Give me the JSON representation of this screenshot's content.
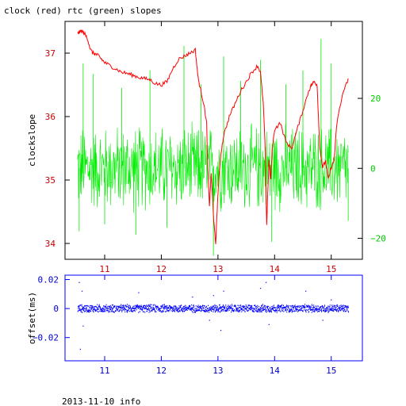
{
  "figure": {
    "title": "clock (red) rtc (green) slopes",
    "footer": "2013-11-10 info"
  },
  "colors": {
    "clock": "#ff0000",
    "rtc": "#00ee00",
    "offset": "#0000ff",
    "axis": "#000000"
  },
  "chart_data": [
    {
      "type": "line",
      "title": "clock (red) rtc (green) slopes",
      "xlim": [
        10.3,
        15.55
      ],
      "x_ticks": [
        11,
        12,
        13,
        14,
        15
      ],
      "x_tick_labels": [
        "11",
        "12",
        "13",
        "14",
        "15"
      ],
      "ylabel": "clockslope",
      "ylim": [
        33.75,
        37.5
      ],
      "y_ticks": [
        34,
        35,
        36,
        37
      ],
      "y_tick_labels": [
        "34",
        "35",
        "36",
        "37"
      ],
      "y2lim": [
        -26,
        42
      ],
      "y2_ticks": [
        -20,
        0,
        20
      ],
      "y2_tick_labels": [
        "−20",
        "0",
        "20"
      ],
      "grid": false,
      "series": [
        {
          "name": "clock",
          "axis": "left",
          "x": [
            10.52,
            10.55,
            10.6,
            10.65,
            10.7,
            10.75,
            10.8,
            10.85,
            10.9,
            10.95,
            11.0,
            11.1,
            11.2,
            11.3,
            11.4,
            11.5,
            11.6,
            11.7,
            11.8,
            11.9,
            12.0,
            12.1,
            12.2,
            12.3,
            12.4,
            12.5,
            12.6,
            12.65,
            12.7,
            12.75,
            12.8,
            12.82,
            12.85,
            12.88,
            12.9,
            12.93,
            12.96,
            13.0,
            13.05,
            13.1,
            13.2,
            13.3,
            13.4,
            13.5,
            13.6,
            13.7,
            13.75,
            13.8,
            13.83,
            13.86,
            13.9,
            13.93,
            13.96,
            14.0,
            14.1,
            14.2,
            14.3,
            14.4,
            14.5,
            14.6,
            14.65,
            14.7,
            14.75,
            14.8,
            14.85,
            14.9,
            14.95,
            15.0,
            15.05,
            15.1,
            15.2,
            15.3
          ],
          "y": [
            37.3,
            37.33,
            37.35,
            37.3,
            37.22,
            37.05,
            37.0,
            36.98,
            36.95,
            36.9,
            36.85,
            36.8,
            36.75,
            36.7,
            36.68,
            36.65,
            36.62,
            36.6,
            36.58,
            36.52,
            36.5,
            36.55,
            36.75,
            36.9,
            36.95,
            37.0,
            37.05,
            36.6,
            36.4,
            36.2,
            35.9,
            35.2,
            34.6,
            35.1,
            34.8,
            34.3,
            34.0,
            34.8,
            35.4,
            35.7,
            36.0,
            36.2,
            36.4,
            36.55,
            36.7,
            36.8,
            36.7,
            36.2,
            35.6,
            34.3,
            35.3,
            35.0,
            35.5,
            35.8,
            35.9,
            35.6,
            35.5,
            35.8,
            36.1,
            36.4,
            36.5,
            36.55,
            36.5,
            35.5,
            35.2,
            35.3,
            35.0,
            35.2,
            35.3,
            35.9,
            36.35,
            36.6
          ]
        },
        {
          "name": "rtc",
          "axis": "right",
          "center": 0,
          "band": [
            -14,
            14
          ],
          "spikes": [
            {
              "x": 10.55,
              "y": -18
            },
            {
              "x": 10.62,
              "y": 30
            },
            {
              "x": 10.8,
              "y": 27
            },
            {
              "x": 11.0,
              "y": -16
            },
            {
              "x": 11.3,
              "y": 23
            },
            {
              "x": 11.55,
              "y": -19
            },
            {
              "x": 11.8,
              "y": 28
            },
            {
              "x": 12.1,
              "y": -17
            },
            {
              "x": 12.4,
              "y": 35
            },
            {
              "x": 12.7,
              "y": 24
            },
            {
              "x": 12.92,
              "y": -25
            },
            {
              "x": 13.1,
              "y": 32
            },
            {
              "x": 13.4,
              "y": 25
            },
            {
              "x": 13.75,
              "y": 31
            },
            {
              "x": 13.95,
              "y": -21
            },
            {
              "x": 14.2,
              "y": 24
            },
            {
              "x": 14.5,
              "y": 28
            },
            {
              "x": 14.82,
              "y": 37
            },
            {
              "x": 15.0,
              "y": 30
            },
            {
              "x": 15.3,
              "y": -15
            }
          ]
        }
      ]
    },
    {
      "type": "scatter",
      "ylabel": "offset(ms)",
      "xlim": [
        10.3,
        15.55
      ],
      "x_ticks": [
        11,
        12,
        13,
        14,
        15
      ],
      "x_tick_labels": [
        "11",
        "12",
        "13",
        "14",
        "15"
      ],
      "ylim": [
        -0.036,
        0.023
      ],
      "y_ticks": [
        0.02,
        0,
        -0.02
      ],
      "y_tick_labels": [
        "0.02",
        "0",
        "−0.02"
      ],
      "grid": false,
      "series": [
        {
          "name": "offset",
          "center": 0,
          "band": [
            -0.003,
            0.003
          ],
          "outliers": [
            {
              "x": 10.55,
              "y": 0.018
            },
            {
              "x": 10.57,
              "y": -0.028
            },
            {
              "x": 10.6,
              "y": 0.012
            },
            {
              "x": 10.62,
              "y": -0.012
            },
            {
              "x": 11.6,
              "y": 0.011
            },
            {
              "x": 12.55,
              "y": 0.008
            },
            {
              "x": 12.85,
              "y": -0.008
            },
            {
              "x": 12.92,
              "y": 0.009
            },
            {
              "x": 13.05,
              "y": -0.015
            },
            {
              "x": 13.1,
              "y": 0.012
            },
            {
              "x": 13.75,
              "y": 0.014
            },
            {
              "x": 13.85,
              "y": 0.018
            },
            {
              "x": 13.9,
              "y": -0.011
            },
            {
              "x": 14.55,
              "y": 0.012
            },
            {
              "x": 14.85,
              "y": -0.008
            },
            {
              "x": 15.0,
              "y": 0.006
            }
          ]
        }
      ]
    }
  ]
}
